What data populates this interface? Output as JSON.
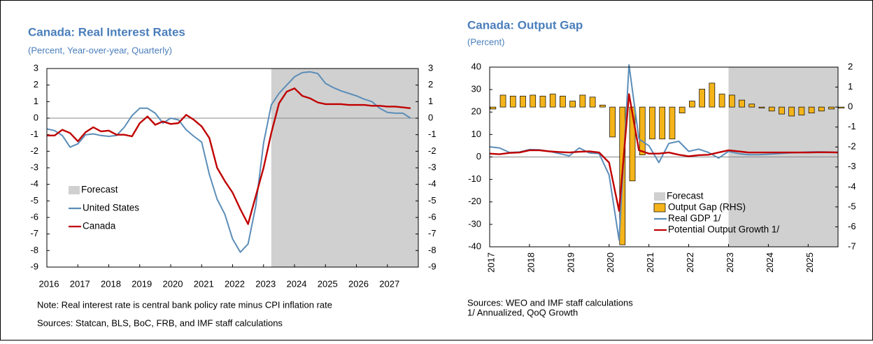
{
  "chart_data": [
    {
      "type": "line",
      "title": "Canada: Real Interest Rates",
      "subtitle": "(Percent, Year-over-year, Quarterly)",
      "notes": [
        "Note: Real interest rate is central bank policy rate minus CPI inflation rate",
        "Sources: Statcan, BLS, BoC, FRB, and IMF staff calculations"
      ],
      "forecast_label": "Forecast",
      "forecast_start": 2023.25,
      "x": [
        2016,
        2016.25,
        2016.5,
        2016.75,
        2017,
        2017.25,
        2017.5,
        2017.75,
        2018,
        2018.25,
        2018.5,
        2018.75,
        2019,
        2019.25,
        2019.5,
        2019.75,
        2020,
        2020.25,
        2020.5,
        2020.75,
        2021,
        2021.25,
        2021.5,
        2021.75,
        2022,
        2022.25,
        2022.5,
        2022.75,
        2023,
        2023.25,
        2023.5,
        2023.75,
        2024,
        2024.25,
        2024.5,
        2024.75,
        2025,
        2025.25,
        2025.5,
        2025.75,
        2026,
        2026.25,
        2026.5,
        2026.75,
        2027,
        2027.25,
        2027.5,
        2027.75
      ],
      "series": [
        {
          "name": "United States",
          "color": "#5b8db8",
          "values": [
            -0.65,
            -0.75,
            -1.05,
            -1.75,
            -1.55,
            -1.0,
            -0.95,
            -1.05,
            -1.1,
            -1.05,
            -0.55,
            0.15,
            0.6,
            0.6,
            0.3,
            -0.3,
            0.0,
            -0.1,
            -0.7,
            -1.1,
            -1.45,
            -3.4,
            -4.9,
            -5.8,
            -7.3,
            -8.1,
            -7.6,
            -5.3,
            -1.5,
            0.8,
            1.5,
            2.0,
            2.5,
            2.75,
            2.8,
            2.7,
            2.1,
            1.85,
            1.65,
            1.5,
            1.35,
            1.15,
            1.0,
            0.6,
            0.35,
            0.3,
            0.3,
            0.0
          ]
        },
        {
          "name": "Canada",
          "color": "#c00000",
          "values": [
            -1.05,
            -1.05,
            -0.7,
            -0.9,
            -1.4,
            -0.85,
            -0.55,
            -0.8,
            -0.75,
            -1.0,
            -1.0,
            -1.1,
            -0.3,
            0.1,
            -0.4,
            -0.2,
            -0.35,
            -0.3,
            0.2,
            -0.1,
            -0.5,
            -1.2,
            -3.0,
            -3.8,
            -4.5,
            -5.5,
            -6.4,
            -4.7,
            -3.0,
            -0.9,
            0.9,
            1.6,
            1.8,
            1.35,
            1.2,
            0.95,
            0.85,
            0.85,
            0.85,
            0.8,
            0.8,
            0.8,
            0.75,
            0.75,
            0.7,
            0.7,
            0.65,
            0.6
          ]
        }
      ],
      "xlim": [
        2016,
        2028
      ],
      "xticks": [
        2016,
        2017,
        2018,
        2019,
        2020,
        2021,
        2022,
        2023,
        2024,
        2025,
        2026,
        2027
      ],
      "ylim": [
        -9,
        3
      ],
      "yticks": [
        -9,
        -8,
        -7,
        -6,
        -5,
        -4,
        -3,
        -2,
        -1,
        0,
        1,
        2,
        3
      ],
      "y2lim": [
        -9,
        3
      ],
      "y2ticks": [
        -9,
        -8,
        -7,
        -6,
        -5,
        -4,
        -3,
        -2,
        -1,
        0,
        1,
        2,
        3
      ],
      "legend": "lower left"
    },
    {
      "type": "bar_line",
      "title": "Canada: Output Gap",
      "subtitle": "(Percent)",
      "notes": [
        "Sources: WEO and IMF staff calculations",
        "1/ Annualized, QoQ Growth"
      ],
      "forecast_label": "Forecast",
      "forecast_start": 2023,
      "x": [
        2017,
        2017.25,
        2017.5,
        2017.75,
        2018,
        2018.25,
        2018.5,
        2018.75,
        2019,
        2019.25,
        2019.5,
        2019.75,
        2020,
        2020.25,
        2020.5,
        2020.75,
        2021,
        2021.25,
        2021.5,
        2021.75,
        2022,
        2022.25,
        2022.5,
        2022.75,
        2023,
        2023.25,
        2023.5,
        2023.75,
        2024,
        2024.25,
        2024.5,
        2024.75,
        2025,
        2025.25,
        2025.5,
        2025.75
      ],
      "series": [
        {
          "name": "Output Gap (RHS)",
          "type": "bar",
          "axis": "y2",
          "color": "#f4b41a",
          "values": [
            -0.1,
            0.6,
            0.55,
            0.55,
            0.6,
            0.55,
            0.65,
            0.55,
            0.3,
            0.6,
            0.5,
            0.1,
            -1.5,
            -6.9,
            -3.7,
            -2.4,
            -1.6,
            -1.6,
            -1.6,
            -0.3,
            0.3,
            0.9,
            1.2,
            0.65,
            0.6,
            0.35,
            0.15,
            -0.05,
            -0.2,
            -0.35,
            -0.45,
            -0.4,
            -0.3,
            -0.2,
            -0.1,
            -0.05
          ]
        },
        {
          "name": "Real GDP 1/",
          "type": "line",
          "color": "#5b8db8",
          "values": [
            4.5,
            4.0,
            2.0,
            2.2,
            3.3,
            3.2,
            2.5,
            1.5,
            0.5,
            4.0,
            1.8,
            1.5,
            -8,
            -37,
            41,
            8,
            5,
            -2.5,
            6,
            7,
            2.5,
            3.5,
            2.0,
            -0.5,
            2.5,
            1.5,
            1.0,
            1.0,
            1.2,
            1.5,
            1.8,
            2.0,
            2.2,
            2.3,
            2.2,
            2.1
          ]
        },
        {
          "name": "Potential Output Growth 1/",
          "type": "line",
          "color": "#c00000",
          "values": [
            1.5,
            1.2,
            1.8,
            2.0,
            3.0,
            3.0,
            2.5,
            2.2,
            2.0,
            2.3,
            2.5,
            2.0,
            -2.5,
            -24,
            28,
            3,
            1.5,
            1.5,
            2.0,
            1.0,
            0.3,
            0.8,
            1.0,
            2.0,
            3.0,
            2.5,
            2.0,
            2.0,
            2.0,
            2.0,
            2.0,
            2.0,
            2.0,
            2.1,
            2.1,
            2.0
          ]
        }
      ],
      "xlim": [
        2017,
        2025.75
      ],
      "xticks": [
        2017,
        2018,
        2019,
        2020,
        2021,
        2022,
        2023,
        2024,
        2025
      ],
      "ylim": [
        -40,
        40
      ],
      "yticks": [
        -40,
        -30,
        -20,
        -10,
        0,
        10,
        20,
        30,
        40
      ],
      "y2lim": [
        -7,
        2
      ],
      "y2ticks": [
        -7,
        -6,
        -5,
        -4,
        -3,
        -2,
        -1,
        0,
        1,
        2
      ],
      "legend": "lower left"
    }
  ]
}
